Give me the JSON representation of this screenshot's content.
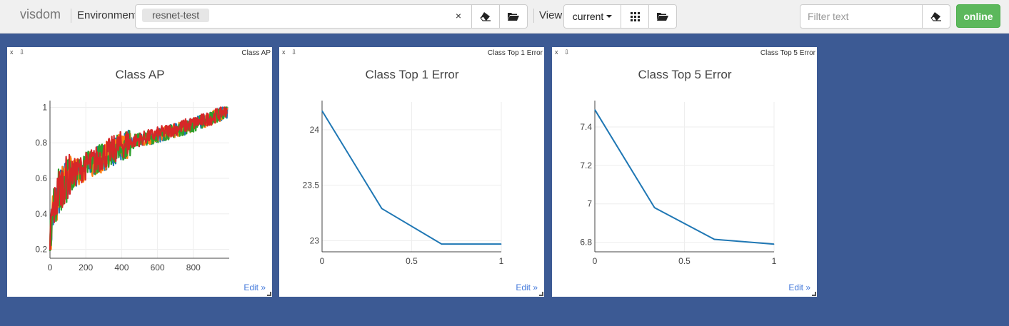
{
  "header": {
    "brand": "visdom",
    "env_label": "Environment",
    "env_tag": "resnet-test",
    "env_clear": "×",
    "view_label": "View",
    "view_value": "current",
    "filter_placeholder": "Filter text",
    "status": "online"
  },
  "colors": {
    "background": "#3c5a94",
    "line": "#1f77b4",
    "orange": "#ff7f0e",
    "green": "#2ca02c",
    "red": "#d62728",
    "online": "#5cb85c"
  },
  "panes": [
    {
      "close": "x",
      "download": "⇩",
      "title": "Class AP",
      "edit": "Edit »",
      "chart_data": {
        "type": "line",
        "title": "Class AP",
        "xlim": [
          0,
          1000
        ],
        "ylim": [
          0.15,
          1.03
        ],
        "x_ticks": [
          0,
          200,
          400,
          600,
          800
        ],
        "x_tick_labels": [
          "0",
          "200",
          "400",
          "600",
          "800"
        ],
        "y_ticks": [
          0.2,
          0.4,
          0.6,
          0.8,
          1
        ],
        "y_tick_labels": [
          "0.2",
          "0.4",
          "0.6",
          "0.8",
          "1"
        ],
        "grid": true,
        "series": [
          {
            "color": "#1f77b4",
            "trend": {
              "x": [
                0,
                10,
                50,
                100,
                200,
                300,
                400,
                500,
                600,
                700,
                800,
                900,
                990
              ],
              "y": [
                0.18,
                0.35,
                0.52,
                0.6,
                0.66,
                0.72,
                0.78,
                0.81,
                0.84,
                0.87,
                0.9,
                0.94,
                0.98
              ]
            }
          },
          {
            "color": "#ff7f0e",
            "trend": {
              "x": [
                0,
                10,
                50,
                100,
                200,
                300,
                400,
                500,
                600,
                700,
                800,
                900,
                990
              ],
              "y": [
                0.2,
                0.36,
                0.53,
                0.61,
                0.66,
                0.72,
                0.78,
                0.81,
                0.84,
                0.87,
                0.9,
                0.94,
                0.98
              ]
            }
          },
          {
            "color": "#2ca02c",
            "trend": {
              "x": [
                0,
                10,
                50,
                100,
                200,
                300,
                400,
                500,
                600,
                700,
                800,
                900,
                990
              ],
              "y": [
                0.22,
                0.37,
                0.53,
                0.6,
                0.67,
                0.73,
                0.78,
                0.82,
                0.84,
                0.87,
                0.9,
                0.94,
                0.98
              ]
            }
          },
          {
            "color": "#d62728",
            "trend": {
              "x": [
                0,
                10,
                50,
                100,
                200,
                300,
                400,
                500,
                600,
                700,
                800,
                900,
                990
              ],
              "y": [
                0.24,
                0.38,
                0.54,
                0.61,
                0.67,
                0.73,
                0.79,
                0.82,
                0.85,
                0.88,
                0.91,
                0.94,
                0.99
              ]
            }
          }
        ]
      }
    },
    {
      "close": "x",
      "download": "⇩",
      "title": "Class Top 1 Error",
      "edit": "Edit »",
      "chart_data": {
        "type": "line",
        "title": "Class Top 1 Error",
        "x": [
          0,
          0.333,
          0.667,
          1
        ],
        "y": [
          24.17,
          23.29,
          22.97,
          22.97
        ],
        "xlim": [
          0,
          1
        ],
        "ylim": [
          22.9,
          24.25
        ],
        "x_ticks": [
          0,
          0.5,
          1
        ],
        "x_tick_labels": [
          "0",
          "0.5",
          "1"
        ],
        "y_ticks": [
          23,
          23.5,
          24
        ],
        "y_tick_labels": [
          "23",
          "23.5",
          "24"
        ],
        "color": "#1f77b4",
        "grid": true
      }
    },
    {
      "close": "x",
      "download": "⇩",
      "title": "Class Top 5 Error",
      "edit": "Edit »",
      "chart_data": {
        "type": "line",
        "title": "Class Top 5 Error",
        "x": [
          0,
          0.333,
          0.667,
          1
        ],
        "y": [
          7.49,
          6.98,
          6.815,
          6.79
        ],
        "xlim": [
          0,
          1
        ],
        "ylim": [
          6.75,
          7.53
        ],
        "x_ticks": [
          0,
          0.5,
          1
        ],
        "x_tick_labels": [
          "0",
          "0.5",
          "1"
        ],
        "y_ticks": [
          6.8,
          7,
          7.2,
          7.4
        ],
        "y_tick_labels": [
          "6.8",
          "7",
          "7.2",
          "7.4"
        ],
        "color": "#1f77b4",
        "grid": true
      }
    }
  ]
}
